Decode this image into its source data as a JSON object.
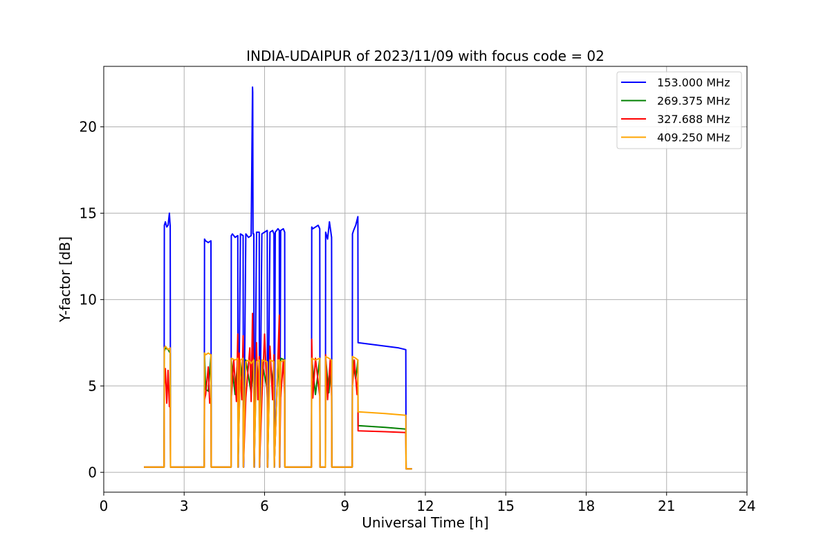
{
  "chart_data": {
    "type": "line",
    "title": "INDIA-UDAIPUR of 2023/11/09 with focus code = 02",
    "xlabel": "Universal Time [h]",
    "ylabel": "Y-factor [dB]",
    "xlim": [
      0,
      24
    ],
    "ylim": [
      -1.15,
      23.5
    ],
    "xticks": [
      0,
      3,
      6,
      9,
      12,
      15,
      18,
      21,
      24
    ],
    "yticks": [
      0,
      5,
      10,
      15,
      20
    ],
    "grid": true,
    "legend_position": "top-right",
    "colors": {
      "153": "#0000ff",
      "269": "#008000",
      "327": "#ff0000",
      "409": "#ffa500"
    },
    "series": [
      {
        "name": "153.000 MHz",
        "color": "#0000ff",
        "x": [
          1.5,
          2.25,
          2.26,
          2.3,
          2.35,
          2.4,
          2.45,
          2.48,
          2.49,
          2.5,
          3.0,
          3.5,
          3.75,
          3.76,
          3.8,
          3.9,
          4.0,
          4.01,
          4.02,
          4.3,
          4.6,
          4.75,
          4.76,
          4.8,
          4.9,
          5.0,
          5.01,
          5.02,
          5.1,
          5.2,
          5.21,
          5.22,
          5.3,
          5.4,
          5.5,
          5.55,
          5.56,
          5.57,
          5.6,
          5.61,
          5.62,
          5.7,
          5.8,
          5.81,
          5.82,
          5.9,
          6.0,
          6.1,
          6.11,
          6.12,
          6.2,
          6.3,
          6.35,
          6.36,
          6.37,
          6.4,
          6.5,
          6.55,
          6.56,
          6.57,
          6.6,
          6.7,
          6.75,
          6.76,
          6.77,
          7.2,
          7.6,
          7.75,
          7.76,
          7.8,
          7.9,
          8.0,
          8.06,
          8.07,
          8.08,
          8.2,
          8.27,
          8.28,
          8.35,
          8.42,
          8.5,
          8.51,
          8.52,
          8.7,
          9.0,
          9.27,
          9.28,
          9.32,
          9.4,
          9.48,
          9.49,
          10.0,
          11.0,
          11.27,
          11.28,
          11.5
        ],
        "values": [
          0.3,
          0.3,
          14.3,
          14.5,
          14.2,
          14.3,
          15.0,
          14.2,
          0.3,
          0.3,
          0.3,
          0.3,
          0.3,
          13.5,
          13.4,
          13.3,
          13.4,
          0.3,
          0.3,
          0.3,
          0.3,
          0.3,
          13.7,
          13.8,
          13.6,
          13.7,
          0.3,
          0.3,
          13.8,
          13.7,
          0.3,
          0.3,
          13.8,
          13.6,
          13.7,
          22.3,
          22.0,
          13.8,
          13.8,
          0.3,
          0.3,
          13.9,
          13.9,
          0.3,
          0.3,
          13.8,
          13.9,
          14.0,
          0.3,
          0.3,
          13.9,
          14.0,
          13.8,
          0.3,
          0.3,
          13.9,
          14.1,
          14.0,
          0.3,
          0.3,
          14.0,
          14.1,
          13.9,
          0.3,
          0.3,
          0.3,
          0.3,
          0.3,
          14.2,
          14.1,
          14.2,
          14.3,
          14.1,
          0.3,
          0.3,
          0.3,
          0.3,
          13.9,
          13.5,
          14.5,
          13.6,
          0.3,
          0.3,
          0.3,
          0.3,
          0.3,
          13.8,
          14.0,
          14.3,
          14.8,
          7.5,
          7.4,
          7.2,
          7.1,
          0.2,
          0.2
        ]
      },
      {
        "name": "269.375 MHz",
        "color": "#008000",
        "x": [
          1.5,
          2.25,
          2.26,
          2.3,
          2.4,
          2.48,
          2.49,
          3.0,
          3.75,
          3.76,
          3.8,
          3.9,
          4.0,
          4.01,
          4.5,
          4.75,
          4.76,
          4.9,
          5.0,
          5.01,
          5.1,
          5.2,
          5.21,
          5.3,
          5.5,
          5.6,
          5.61,
          5.7,
          5.8,
          5.81,
          5.9,
          6.1,
          6.11,
          6.2,
          6.35,
          6.36,
          6.5,
          6.55,
          6.56,
          6.6,
          6.75,
          6.76,
          7.5,
          7.75,
          7.76,
          7.9,
          8.06,
          8.07,
          8.27,
          8.28,
          8.4,
          8.5,
          8.51,
          9.0,
          9.27,
          9.28,
          9.4,
          9.48,
          9.49,
          10.5,
          11.27,
          11.28,
          11.5
        ],
        "values": [
          0.3,
          0.3,
          7.0,
          7.2,
          7.1,
          6.9,
          0.3,
          0.3,
          0.3,
          6.9,
          4.8,
          4.7,
          6.8,
          0.3,
          0.3,
          0.3,
          6.5,
          4.5,
          6.6,
          0.3,
          6.4,
          4.8,
          0.3,
          6.5,
          4.6,
          6.6,
          0.3,
          6.5,
          4.7,
          0.3,
          6.4,
          4.8,
          0.3,
          6.5,
          4.7,
          0.3,
          6.5,
          4.9,
          0.3,
          6.6,
          6.5,
          0.3,
          0.3,
          0.3,
          6.6,
          4.5,
          6.6,
          0.3,
          0.3,
          6.6,
          4.6,
          6.5,
          0.3,
          0.3,
          0.3,
          6.6,
          5.4,
          6.5,
          2.7,
          2.6,
          2.5,
          0.2,
          0.2
        ]
      },
      {
        "name": "327.688 MHz",
        "color": "#ff0000",
        "x": [
          1.5,
          2.25,
          2.26,
          2.3,
          2.35,
          2.4,
          2.45,
          2.48,
          2.49,
          3.0,
          3.75,
          3.76,
          3.8,
          3.9,
          3.95,
          4.0,
          4.01,
          4.5,
          4.75,
          4.76,
          4.85,
          4.95,
          5.0,
          5.01,
          5.05,
          5.15,
          5.2,
          5.21,
          5.3,
          5.45,
          5.5,
          5.55,
          5.6,
          5.61,
          5.7,
          5.75,
          5.8,
          5.81,
          5.9,
          6.0,
          6.1,
          6.11,
          6.2,
          6.3,
          6.35,
          6.36,
          6.45,
          6.55,
          6.56,
          6.6,
          6.7,
          6.75,
          6.76,
          7.5,
          7.75,
          7.76,
          7.8,
          7.9,
          8.06,
          8.07,
          8.27,
          8.28,
          8.35,
          8.45,
          8.5,
          8.51,
          9.0,
          9.27,
          9.28,
          9.35,
          9.45,
          9.48,
          9.49,
          10.5,
          11.27,
          11.28,
          11.5
        ],
        "values": [
          0.3,
          0.3,
          5.0,
          6.0,
          4.0,
          5.9,
          3.8,
          4.5,
          0.3,
          0.3,
          0.3,
          4.2,
          4.5,
          6.1,
          4.0,
          4.3,
          0.3,
          0.3,
          0.3,
          4.3,
          6.5,
          4.1,
          8.0,
          0.3,
          6.9,
          4.2,
          7.9,
          0.3,
          4.3,
          7.2,
          4.1,
          9.2,
          4.3,
          0.3,
          7.5,
          4.2,
          6.7,
          0.3,
          4.2,
          8.0,
          4.3,
          0.3,
          7.3,
          4.2,
          6.8,
          0.3,
          4.1,
          9.1,
          0.3,
          4.3,
          6.5,
          4.4,
          0.3,
          0.3,
          0.3,
          7.7,
          4.3,
          6.6,
          4.4,
          0.3,
          0.3,
          6.8,
          4.2,
          6.5,
          4.4,
          0.3,
          0.3,
          0.3,
          5.0,
          6.5,
          4.5,
          5.5,
          2.4,
          2.35,
          2.3,
          0.2,
          0.2
        ]
      },
      {
        "name": "409.250 MHz",
        "color": "#ffa500",
        "x": [
          1.5,
          2.25,
          2.26,
          2.3,
          2.4,
          2.48,
          2.49,
          3.0,
          3.75,
          3.76,
          3.8,
          3.9,
          4.0,
          4.01,
          4.5,
          4.75,
          4.76,
          4.9,
          5.0,
          5.01,
          5.1,
          5.2,
          5.21,
          5.3,
          5.4,
          5.5,
          5.6,
          5.61,
          5.7,
          5.8,
          5.81,
          5.9,
          6.1,
          6.11,
          6.2,
          6.35,
          6.36,
          6.5,
          6.55,
          6.56,
          6.6,
          6.75,
          6.76,
          7.5,
          7.75,
          7.76,
          7.9,
          8.06,
          8.07,
          8.27,
          8.28,
          8.4,
          8.5,
          8.51,
          9.0,
          9.27,
          9.28,
          9.4,
          9.48,
          9.49,
          10.5,
          11.27,
          11.28,
          11.5
        ],
        "values": [
          0.3,
          0.3,
          7.2,
          7.3,
          7.1,
          7.2,
          0.3,
          0.3,
          0.3,
          6.9,
          6.8,
          6.9,
          6.8,
          0.3,
          0.3,
          0.3,
          6.6,
          6.5,
          6.6,
          0.3,
          6.5,
          6.6,
          0.3,
          6.4,
          6.5,
          6.3,
          6.5,
          0.3,
          6.4,
          6.5,
          0.3,
          6.5,
          6.4,
          0.3,
          6.5,
          6.4,
          0.3,
          6.5,
          6.5,
          0.3,
          6.4,
          6.5,
          0.3,
          0.3,
          0.3,
          6.6,
          6.5,
          6.6,
          0.3,
          0.3,
          6.7,
          6.6,
          6.5,
          0.3,
          0.3,
          0.3,
          6.7,
          6.6,
          6.5,
          3.5,
          3.4,
          3.3,
          0.2,
          0.2
        ]
      }
    ]
  }
}
